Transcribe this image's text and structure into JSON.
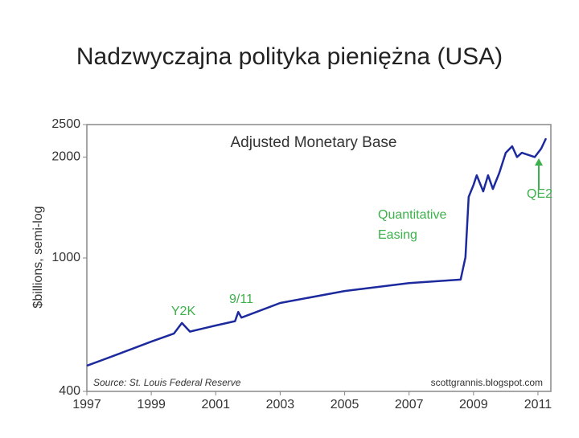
{
  "slide_title": "Nadzwyczajna polityka pieniężna (USA)",
  "chart_data": {
    "type": "line",
    "title": "Adjusted Monetary Base",
    "y_label": "$billions, semi-log",
    "y_scale": "log",
    "xlim": [
      1997,
      2011.4
    ],
    "ylim": [
      400,
      2500
    ],
    "xticks": [
      1997,
      1999,
      2001,
      2003,
      2005,
      2007,
      2009,
      2011
    ],
    "yticks": [
      400,
      1000,
      2000,
      2500
    ],
    "series": [
      {
        "name": "Adjusted Monetary Base",
        "color": "#1c2a9e",
        "x": [
          1997.0,
          1998.0,
          1999.0,
          1999.7,
          1999.95,
          2000.2,
          2001.0,
          2001.6,
          2001.7,
          2001.8,
          2003.0,
          2005.0,
          2007.0,
          2008.6,
          2008.75,
          2008.85,
          2009.0,
          2009.1,
          2009.3,
          2009.45,
          2009.6,
          2009.8,
          2010.0,
          2010.2,
          2010.35,
          2010.5,
          2010.9,
          2011.1,
          2011.25
        ],
        "values": [
          477,
          518,
          563,
          595,
          640,
          603,
          629,
          648,
          690,
          664,
          734,
          797,
          842,
          862,
          1005,
          1521,
          1651,
          1765,
          1580,
          1765,
          1607,
          1794,
          2060,
          2154,
          2000,
          2060,
          2000,
          2120,
          2275
        ]
      }
    ],
    "annotations": [
      "Y2K",
      "9/11",
      "Quantitative",
      "Easing",
      "QE2"
    ],
    "source": "Source:  St. Louis Federal Reserve",
    "credit": "scottgrannis.blogspot.com"
  }
}
